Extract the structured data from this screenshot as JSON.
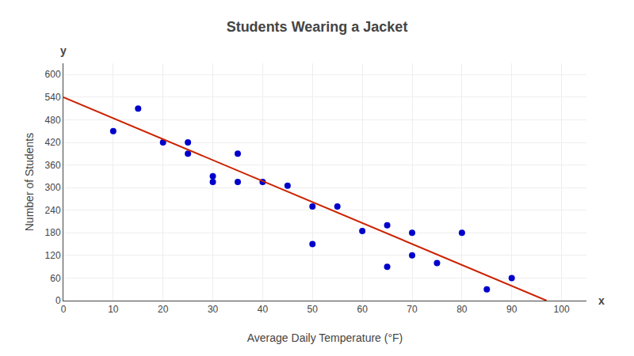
{
  "chart_data": {
    "type": "scatter",
    "title": "Students Wearing a Jacket",
    "xlabel": "Average Daily Temperature (°F)",
    "ylabel": "Number of Students",
    "xlim": [
      0,
      105
    ],
    "ylim": [
      0,
      630
    ],
    "xticks": [
      0,
      10,
      20,
      30,
      40,
      50,
      60,
      70,
      80,
      90,
      100
    ],
    "yticks": [
      0,
      60,
      120,
      180,
      240,
      300,
      360,
      420,
      480,
      540,
      600
    ],
    "grid": true,
    "annotations": [
      "x",
      "y"
    ],
    "series": [
      {
        "type": "scatter",
        "marker": "circle",
        "color": "#0000CC",
        "x": [
          10,
          15,
          20,
          25,
          25,
          30,
          30,
          35,
          35,
          40,
          45,
          50,
          50,
          55,
          60,
          65,
          65,
          70,
          70,
          75,
          80,
          85,
          90
        ],
        "values": [
          450,
          510,
          420,
          390,
          420,
          315,
          330,
          390,
          315,
          315,
          305,
          150,
          250,
          250,
          185,
          200,
          90,
          120,
          180,
          100,
          180,
          30,
          60
        ]
      },
      {
        "type": "line",
        "line_style": "solid",
        "color": "#CC2200",
        "x": [
          0,
          97
        ],
        "values": [
          540,
          0
        ]
      }
    ]
  }
}
